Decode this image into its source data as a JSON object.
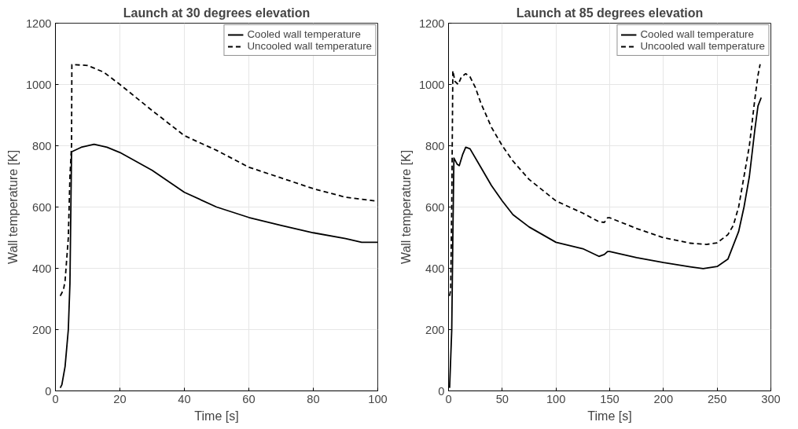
{
  "chart_data": [
    {
      "type": "line",
      "title": "Launch at 30 degrees elevation",
      "xlabel": "Time [s]",
      "ylabel": "Wall temperature [K]",
      "xlim": [
        0,
        100
      ],
      "ylim": [
        0,
        1200
      ],
      "xticks": [
        0,
        20,
        40,
        60,
        80,
        100
      ],
      "yticks": [
        0,
        200,
        400,
        600,
        800,
        1000,
        1200
      ],
      "grid": true,
      "legend": "top right",
      "series": [
        {
          "name": "Cooled wall temperature",
          "color": "#000000",
          "line_style": "solid",
          "x": [
            1.5,
            2,
            3,
            4,
            4.5,
            5,
            8,
            12,
            16,
            20,
            30,
            40,
            50,
            60,
            70,
            80,
            90,
            95,
            100
          ],
          "values": [
            10,
            20,
            80,
            200,
            350,
            780,
            795,
            805,
            795,
            778,
            720,
            648,
            600,
            566,
            540,
            516,
            497,
            485,
            485
          ]
        },
        {
          "name": "Uncooled wall temperature",
          "color": "#000000",
          "line_style": "dashed",
          "x": [
            1.5,
            2.5,
            3,
            4,
            4.5,
            5,
            5.1,
            10,
            15,
            20,
            30,
            40,
            50,
            60,
            70,
            80,
            90,
            100
          ],
          "values": [
            310,
            330,
            360,
            500,
            700,
            800,
            1065,
            1062,
            1040,
            1000,
            915,
            833,
            785,
            730,
            695,
            660,
            632,
            619
          ]
        }
      ]
    },
    {
      "type": "line",
      "title": "Launch at 85 degrees elevation",
      "xlabel": "Time [s]",
      "ylabel": "Wall temperature [K]",
      "xlim": [
        0,
        300
      ],
      "ylim": [
        0,
        1200
      ],
      "xticks": [
        0,
        50,
        100,
        150,
        200,
        250,
        300
      ],
      "yticks": [
        0,
        200,
        400,
        600,
        800,
        1000,
        1200
      ],
      "grid": true,
      "legend": "top right",
      "series": [
        {
          "name": "Cooled wall temperature",
          "color": "#000000",
          "line_style": "solid",
          "x": [
            1,
            3,
            4,
            5,
            8,
            10,
            13,
            16,
            20,
            30,
            40,
            50,
            60,
            75,
            100,
            125,
            140,
            145,
            148,
            150,
            175,
            200,
            225,
            237,
            250,
            260,
            270,
            275,
            280,
            285,
            288,
            291
          ],
          "values": [
            10,
            200,
            500,
            760,
            740,
            735,
            770,
            795,
            790,
            730,
            670,
            620,
            575,
            535,
            485,
            464,
            439,
            445,
            455,
            455,
            435,
            419,
            405,
            399,
            406,
            430,
            520,
            600,
            700,
            850,
            930,
            957
          ]
        },
        {
          "name": "Uncooled wall temperature",
          "color": "#000000",
          "line_style": "dashed",
          "x": [
            1,
            2,
            3,
            4,
            6,
            9,
            12,
            16,
            20,
            25,
            30,
            40,
            50,
            60,
            75,
            100,
            125,
            140,
            145,
            148,
            150,
            175,
            200,
            225,
            240,
            250,
            260,
            265,
            270,
            275,
            280,
            285,
            288,
            290
          ],
          "values": [
            310,
            330,
            600,
            1045,
            1010,
            1000,
            1025,
            1035,
            1025,
            990,
            940,
            860,
            800,
            750,
            690,
            620,
            580,
            552,
            550,
            565,
            565,
            530,
            500,
            482,
            478,
            483,
            510,
            540,
            600,
            700,
            800,
            950,
            1030,
            1066
          ]
        }
      ]
    }
  ]
}
